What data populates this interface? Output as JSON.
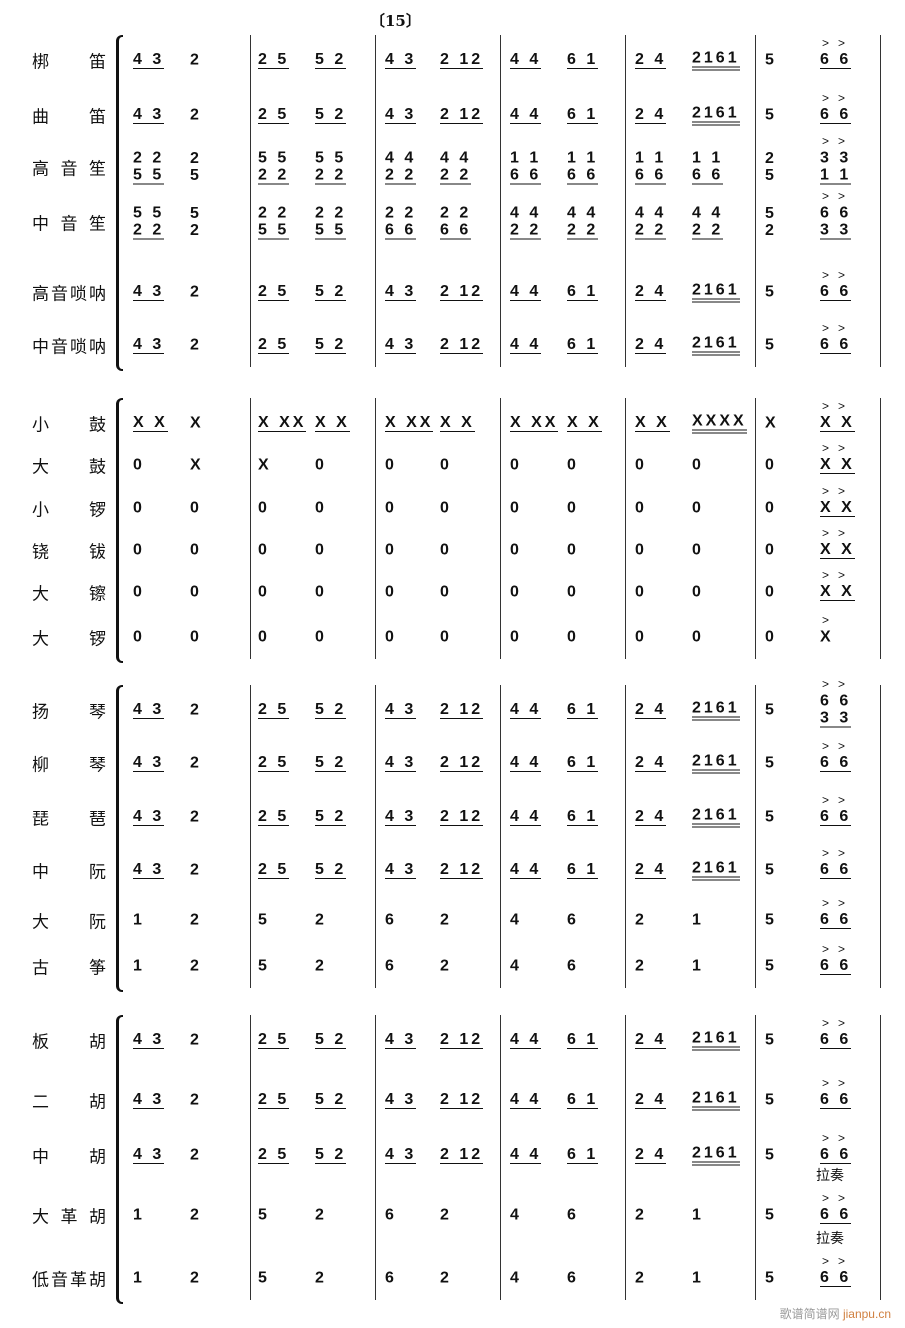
{
  "rehearsal_mark": "〔15〕",
  "annotation": "拉奏",
  "watermark": {
    "text": "歌谱简谱网",
    "domain": "jianpu.cn"
  },
  "groups": [
    {
      "instruments": [
        {
          "name": "梆笛",
          "measures": [
            [
              "4 3",
              "2"
            ],
            [
              "2 5",
              "5 2"
            ],
            [
              "4 3",
              "2 12"
            ],
            [
              "4 4",
              "6 1"
            ],
            [
              "2 4",
              "2161"
            ],
            [
              "5",
              "6 6"
            ]
          ]
        },
        {
          "name": "曲笛",
          "measures": [
            [
              "4 3",
              "2"
            ],
            [
              "2 5",
              "5 2"
            ],
            [
              "4 3",
              "2 12"
            ],
            [
              "4 4",
              "6 1"
            ],
            [
              "2 4",
              "2161"
            ],
            [
              "5",
              "6 6"
            ]
          ]
        },
        {
          "name": "高音笙",
          "measures": [
            [
              "2 2|5 5",
              "2|5"
            ],
            [
              "5 5|2 2",
              "5 5|2 2"
            ],
            [
              "4 4|2 2",
              "4 4|2 2"
            ],
            [
              "1 1|6 6",
              "1 1|6 6"
            ],
            [
              "1 1|6 6",
              "1 1|6 6"
            ],
            [
              "2|5",
              "3 3|1 1"
            ]
          ]
        },
        {
          "name": "中音笙",
          "measures": [
            [
              "5 5|2 2",
              "5|2"
            ],
            [
              "2 2|5 5",
              "2 2|5 5"
            ],
            [
              "2 2|6 6",
              "2 2|6 6"
            ],
            [
              "4 4|2 2",
              "4 4|2 2"
            ],
            [
              "4 4|2 2",
              "4 4|2 2"
            ],
            [
              "5|2",
              "6 6|3 3"
            ]
          ]
        },
        {
          "name": "高音唢呐",
          "measures": [
            [
              "4 3",
              "2"
            ],
            [
              "2 5",
              "5 2"
            ],
            [
              "4 3",
              "2 12"
            ],
            [
              "4 4",
              "6 1"
            ],
            [
              "2 4",
              "2161"
            ],
            [
              "5",
              "6 6"
            ]
          ]
        },
        {
          "name": "中音唢呐",
          "measures": [
            [
              "4 3",
              "2"
            ],
            [
              "2 5",
              "5 2"
            ],
            [
              "4 3",
              "2 12"
            ],
            [
              "4 4",
              "6 1"
            ],
            [
              "2 4",
              "2161"
            ],
            [
              "5",
              "6 6"
            ]
          ]
        }
      ]
    },
    {
      "instruments": [
        {
          "name": "小鼓",
          "measures": [
            [
              "X X",
              "X"
            ],
            [
              "X XX",
              "X X"
            ],
            [
              "X XX",
              "X X"
            ],
            [
              "X XX",
              "X X"
            ],
            [
              "X X",
              "XXXX"
            ],
            [
              "X",
              "X X"
            ]
          ]
        },
        {
          "name": "大鼓",
          "measures": [
            [
              "0",
              "X"
            ],
            [
              "X",
              "0"
            ],
            [
              "0",
              "0"
            ],
            [
              "0",
              "0"
            ],
            [
              "0",
              "0"
            ],
            [
              "0",
              "X X"
            ]
          ]
        },
        {
          "name": "小锣",
          "measures": [
            [
              "0",
              "0"
            ],
            [
              "0",
              "0"
            ],
            [
              "0",
              "0"
            ],
            [
              "0",
              "0"
            ],
            [
              "0",
              "0"
            ],
            [
              "0",
              "X X"
            ]
          ]
        },
        {
          "name": "铙钹",
          "measures": [
            [
              "0",
              "0"
            ],
            [
              "0",
              "0"
            ],
            [
              "0",
              "0"
            ],
            [
              "0",
              "0"
            ],
            [
              "0",
              "0"
            ],
            [
              "0",
              "X X"
            ]
          ]
        },
        {
          "name": "大镲",
          "measures": [
            [
              "0",
              "0"
            ],
            [
              "0",
              "0"
            ],
            [
              "0",
              "0"
            ],
            [
              "0",
              "0"
            ],
            [
              "0",
              "0"
            ],
            [
              "0",
              "X X"
            ]
          ]
        },
        {
          "name": "大锣",
          "measures": [
            [
              "0",
              "0"
            ],
            [
              "0",
              "0"
            ],
            [
              "0",
              "0"
            ],
            [
              "0",
              "0"
            ],
            [
              "0",
              "0"
            ],
            [
              "0",
              "X"
            ]
          ]
        }
      ]
    },
    {
      "instruments": [
        {
          "name": "扬琴",
          "measures": [
            [
              "4 3",
              "2"
            ],
            [
              "2 5",
              "5 2"
            ],
            [
              "4 3",
              "2 12"
            ],
            [
              "4 4",
              "6 1"
            ],
            [
              "2 4",
              "2161"
            ],
            [
              "5",
              "6 6|3 3"
            ]
          ]
        },
        {
          "name": "柳琴",
          "measures": [
            [
              "4 3",
              "2"
            ],
            [
              "2 5",
              "5 2"
            ],
            [
              "4 3",
              "2 12"
            ],
            [
              "4 4",
              "6 1"
            ],
            [
              "2 4",
              "2161"
            ],
            [
              "5",
              "6 6"
            ]
          ]
        },
        {
          "name": "琵琶",
          "measures": [
            [
              "4 3",
              "2"
            ],
            [
              "2 5",
              "5 2"
            ],
            [
              "4 3",
              "2 12"
            ],
            [
              "4 4",
              "6 1"
            ],
            [
              "2 4",
              "2161"
            ],
            [
              "5",
              "6 6"
            ]
          ]
        },
        {
          "name": "中阮",
          "measures": [
            [
              "4 3",
              "2"
            ],
            [
              "2 5",
              "5 2"
            ],
            [
              "4 3",
              "2 12"
            ],
            [
              "4 4",
              "6 1"
            ],
            [
              "2 4",
              "2161"
            ],
            [
              "5",
              "6 6"
            ]
          ]
        },
        {
          "name": "大阮",
          "measures": [
            [
              "1",
              "2"
            ],
            [
              "5",
              "2"
            ],
            [
              "6",
              "2"
            ],
            [
              "4",
              "6"
            ],
            [
              "2",
              "1"
            ],
            [
              "5",
              "6 6"
            ]
          ]
        },
        {
          "name": "古筝",
          "measures": [
            [
              "1",
              "2"
            ],
            [
              "5",
              "2"
            ],
            [
              "6",
              "2"
            ],
            [
              "4",
              "6"
            ],
            [
              "2",
              "1"
            ],
            [
              "5",
              "6 6"
            ]
          ]
        }
      ]
    },
    {
      "instruments": [
        {
          "name": "板胡",
          "measures": [
            [
              "4 3",
              "2"
            ],
            [
              "2 5",
              "5 2"
            ],
            [
              "4 3",
              "2 12"
            ],
            [
              "4 4",
              "6 1"
            ],
            [
              "2 4",
              "2161"
            ],
            [
              "5",
              "6 6"
            ]
          ]
        },
        {
          "name": "二胡",
          "measures": [
            [
              "4 3",
              "2"
            ],
            [
              "2 5",
              "5 2"
            ],
            [
              "4 3",
              "2 12"
            ],
            [
              "4 4",
              "6 1"
            ],
            [
              "2 4",
              "2161"
            ],
            [
              "5",
              "6 6"
            ]
          ]
        },
        {
          "name": "中胡",
          "measures": [
            [
              "4 3",
              "2"
            ],
            [
              "2 5",
              "5 2"
            ],
            [
              "4 3",
              "2 12"
            ],
            [
              "4 4",
              "6 1"
            ],
            [
              "2 4",
              "2161"
            ],
            [
              "5",
              "6 6"
            ]
          ]
        },
        {
          "name": "大革胡",
          "measures": [
            [
              "1",
              "2"
            ],
            [
              "5",
              "2"
            ],
            [
              "6",
              "2"
            ],
            [
              "4",
              "6"
            ],
            [
              "2",
              "1"
            ],
            [
              "5",
              "6 6"
            ]
          ]
        },
        {
          "name": "低音革胡",
          "measures": [
            [
              "1",
              "2"
            ],
            [
              "5",
              "2"
            ],
            [
              "6",
              "2"
            ],
            [
              "4",
              "6"
            ],
            [
              "2",
              "1"
            ],
            [
              "5",
              "6 6"
            ]
          ]
        }
      ]
    }
  ]
}
